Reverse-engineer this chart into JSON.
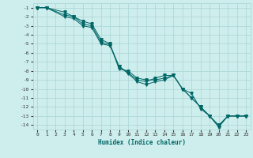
{
  "xlabel": "Humidex (Indice chaleur)",
  "bg_color": "#ceeeed",
  "grid_color": "#aed8d8",
  "line_color": "#006666",
  "xlim": [
    -0.5,
    23.5
  ],
  "ylim": [
    -14.5,
    -0.5
  ],
  "xticks": [
    0,
    1,
    2,
    3,
    4,
    5,
    6,
    7,
    8,
    9,
    10,
    11,
    12,
    13,
    14,
    15,
    16,
    17,
    18,
    19,
    20,
    21,
    22,
    23
  ],
  "yticks": [
    -1,
    -2,
    -3,
    -4,
    -5,
    -6,
    -7,
    -8,
    -9,
    -10,
    -11,
    -12,
    -13,
    -14
  ],
  "series1_x": [
    0,
    1,
    3,
    4,
    5,
    6,
    7,
    8,
    9,
    10,
    11,
    12,
    13,
    14,
    15,
    16,
    17,
    18,
    19,
    20,
    21,
    22,
    23
  ],
  "series1_y": [
    -1,
    -1,
    -1.5,
    -2,
    -2.5,
    -2.8,
    -4.5,
    -5.0,
    -7.8,
    -8.0,
    -8.8,
    -9.0,
    -9.0,
    -8.8,
    -8.5,
    -10.0,
    -11.0,
    -12.0,
    -13.0,
    -14.2,
    -13.0,
    -13.0,
    -13.0
  ],
  "series2_x": [
    0,
    1,
    3,
    4,
    5,
    6,
    7,
    8,
    9,
    10,
    11,
    12,
    13,
    14,
    15,
    16,
    17,
    18,
    19,
    20,
    21,
    22,
    23
  ],
  "series2_y": [
    -1,
    -1,
    -2.0,
    -2.2,
    -3.0,
    -3.2,
    -5.0,
    -5.2,
    -7.5,
    -8.3,
    -9.2,
    -9.5,
    -9.2,
    -9.0,
    -8.5,
    -10.0,
    -10.5,
    -12.2,
    -13.0,
    -14.2,
    -13.0,
    -13.0,
    -13.0
  ],
  "series3_x": [
    0,
    1,
    3,
    4,
    5,
    6,
    7,
    8,
    9,
    10,
    11,
    12,
    13,
    14,
    15,
    16,
    17,
    18,
    19,
    20,
    21,
    22,
    23
  ],
  "series3_y": [
    -1,
    -1,
    -1.8,
    -2.0,
    -2.8,
    -3.0,
    -4.8,
    -5.1,
    -7.5,
    -8.2,
    -9.0,
    -9.2,
    -8.8,
    -8.5,
    -8.5,
    -10.0,
    -11.0,
    -12.0,
    -13.0,
    -14.0,
    -13.0,
    -13.0,
    -13.0
  ]
}
